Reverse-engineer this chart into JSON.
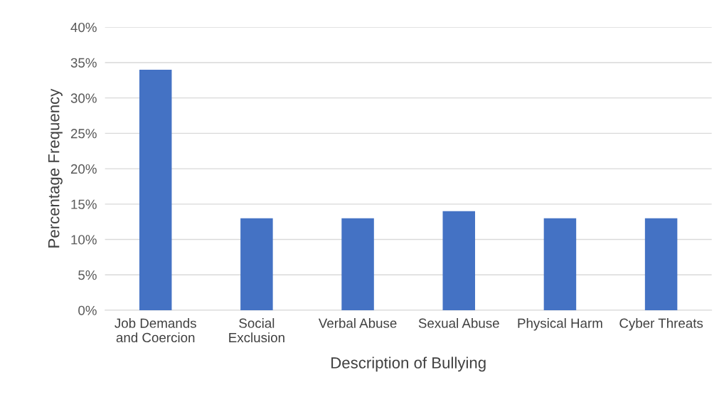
{
  "chart_data": {
    "type": "bar",
    "xlabel": "Description of Bullying",
    "ylabel": "Percentage Frequency",
    "categories": [
      "Job Demands\nand Coercion",
      "Social\nExclusion",
      "Verbal Abuse",
      "Sexual Abuse",
      "Physical Harm",
      "Cyber Threats"
    ],
    "values": [
      34,
      13,
      13,
      14,
      13,
      13
    ],
    "color": "#4472c4",
    "ylim": [
      0,
      40
    ],
    "yticks": [
      {
        "value": 0,
        "label": "0%"
      },
      {
        "value": 5,
        "label": "5%"
      },
      {
        "value": 10,
        "label": "10%"
      },
      {
        "value": 15,
        "label": "15%"
      },
      {
        "value": 20,
        "label": "20%"
      },
      {
        "value": 25,
        "label": "25%"
      },
      {
        "value": 30,
        "label": "30%"
      },
      {
        "value": 35,
        "label": "35%"
      },
      {
        "value": 40,
        "label": "40%"
      }
    ],
    "grid": "y",
    "legend": false
  }
}
